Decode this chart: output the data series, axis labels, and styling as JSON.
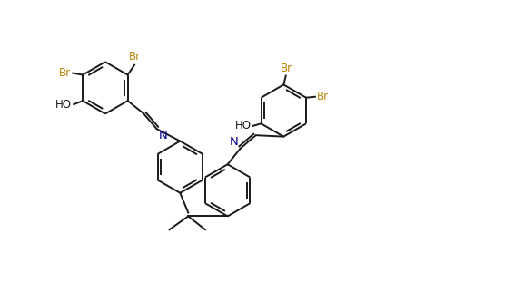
{
  "bg_color": "#ffffff",
  "line_color": "#1a1a1a",
  "label_color_Br": "#b8860b",
  "label_color_N": "#00008b",
  "label_color_HO": "#1a1a1a",
  "line_width": 1.4,
  "font_size": 8.5,
  "figsize": [
    5.77,
    3.22
  ],
  "dpi": 100,
  "xlim": [
    0,
    10.5
  ],
  "ylim": [
    -0.5,
    6.0
  ]
}
